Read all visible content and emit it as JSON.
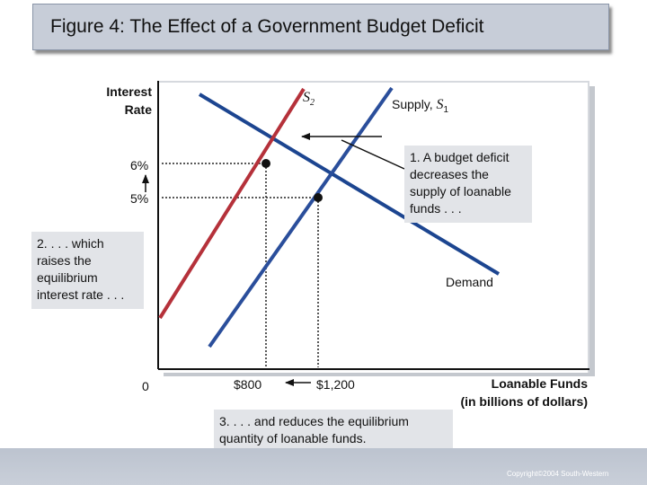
{
  "title": "Figure 4: The Effect of a Government Budget Deficit",
  "copyright": "Copyright©2004 South-Western",
  "axes": {
    "y_label_line1": "Interest",
    "y_label_line2": "Rate",
    "x_label_line1": "Loanable Funds",
    "x_label_line2": "(in billions of dollars)",
    "origin": "0"
  },
  "curves": {
    "s2_label": "S",
    "s2_sub": "2",
    "s1_label_prefix": "Supply, ",
    "s1_label": "S",
    "s1_sub": "1",
    "demand_label": "Demand",
    "s2_color": "#b5313a",
    "s1_color": "#2a4e9b",
    "demand_color": "#1c4590"
  },
  "values": {
    "rate_high": "6%",
    "rate_low": "5%",
    "qty_low": "$800",
    "qty_high": "$1,200"
  },
  "notes": {
    "note1": "1. A budget deficit decreases the supply of loanable funds . . .",
    "note2": "2. . . . which raises the equilibrium interest rate . . .",
    "note3": "3. . . . and reduces the equilibrium quantity of loanable funds."
  }
}
